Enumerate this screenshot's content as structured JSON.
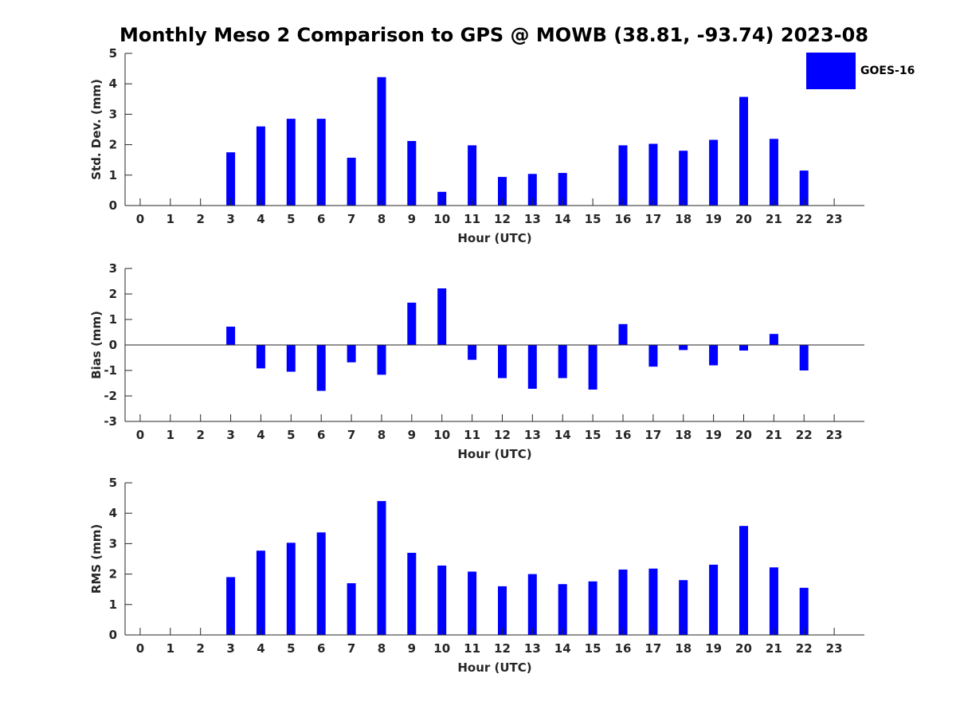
{
  "title": "Monthly Meso 2 Comparison to GPS @ MOWB (38.81, -93.74) 2023-08",
  "legend": {
    "label": "GOES-16",
    "color": "#0000ff"
  },
  "colors": {
    "bar": "#0000ff",
    "axis": "#262626"
  },
  "chart_data": [
    {
      "type": "bar",
      "title": "",
      "xlabel": "Hour (UTC)",
      "ylabel": "Std. Dev. (mm)",
      "ylim": [
        0,
        5
      ],
      "yticks": [
        0,
        1,
        2,
        3,
        4,
        5
      ],
      "categories": [
        "0",
        "1",
        "2",
        "3",
        "4",
        "5",
        "6",
        "7",
        "8",
        "9",
        "10",
        "11",
        "12",
        "13",
        "14",
        "15",
        "16",
        "17",
        "18",
        "19",
        "20",
        "21",
        "22",
        "23"
      ],
      "values": [
        null,
        null,
        null,
        1.75,
        2.6,
        2.85,
        2.85,
        1.57,
        4.22,
        2.12,
        0.45,
        1.98,
        0.94,
        1.04,
        1.07,
        null,
        1.98,
        2.03,
        1.8,
        2.16,
        3.57,
        2.19,
        1.15,
        null
      ],
      "series_name": "GOES-16",
      "grid": false,
      "legend_position": "top-right"
    },
    {
      "type": "bar",
      "title": "",
      "xlabel": "Hour (UTC)",
      "ylabel": "Bias (mm)",
      "ylim": [
        -3,
        3
      ],
      "yticks": [
        -3,
        -2,
        -1,
        0,
        1,
        2,
        3
      ],
      "zero_line": true,
      "categories": [
        "0",
        "1",
        "2",
        "3",
        "4",
        "5",
        "6",
        "7",
        "8",
        "9",
        "10",
        "11",
        "12",
        "13",
        "14",
        "15",
        "16",
        "17",
        "18",
        "19",
        "20",
        "21",
        "22",
        "23"
      ],
      "values": [
        null,
        null,
        null,
        0.72,
        -0.92,
        -1.05,
        -1.8,
        -0.68,
        -1.17,
        1.66,
        2.22,
        -0.58,
        -1.3,
        -1.72,
        -1.3,
        -1.75,
        0.82,
        -0.85,
        -0.2,
        -0.8,
        -0.22,
        0.43,
        -1.0,
        null
      ],
      "series_name": "GOES-16",
      "grid": false
    },
    {
      "type": "bar",
      "title": "",
      "xlabel": "Hour (UTC)",
      "ylabel": "RMS (mm)",
      "ylim": [
        0,
        5
      ],
      "yticks": [
        0,
        1,
        2,
        3,
        4,
        5
      ],
      "categories": [
        "0",
        "1",
        "2",
        "3",
        "4",
        "5",
        "6",
        "7",
        "8",
        "9",
        "10",
        "11",
        "12",
        "13",
        "14",
        "15",
        "16",
        "17",
        "18",
        "19",
        "20",
        "21",
        "22",
        "23"
      ],
      "values": [
        null,
        null,
        null,
        1.9,
        2.77,
        3.03,
        3.37,
        1.7,
        4.4,
        2.7,
        2.28,
        2.08,
        1.6,
        2.0,
        1.67,
        1.76,
        2.15,
        2.18,
        1.8,
        2.31,
        3.58,
        2.22,
        1.55,
        null
      ],
      "series_name": "GOES-16",
      "grid": false
    }
  ]
}
